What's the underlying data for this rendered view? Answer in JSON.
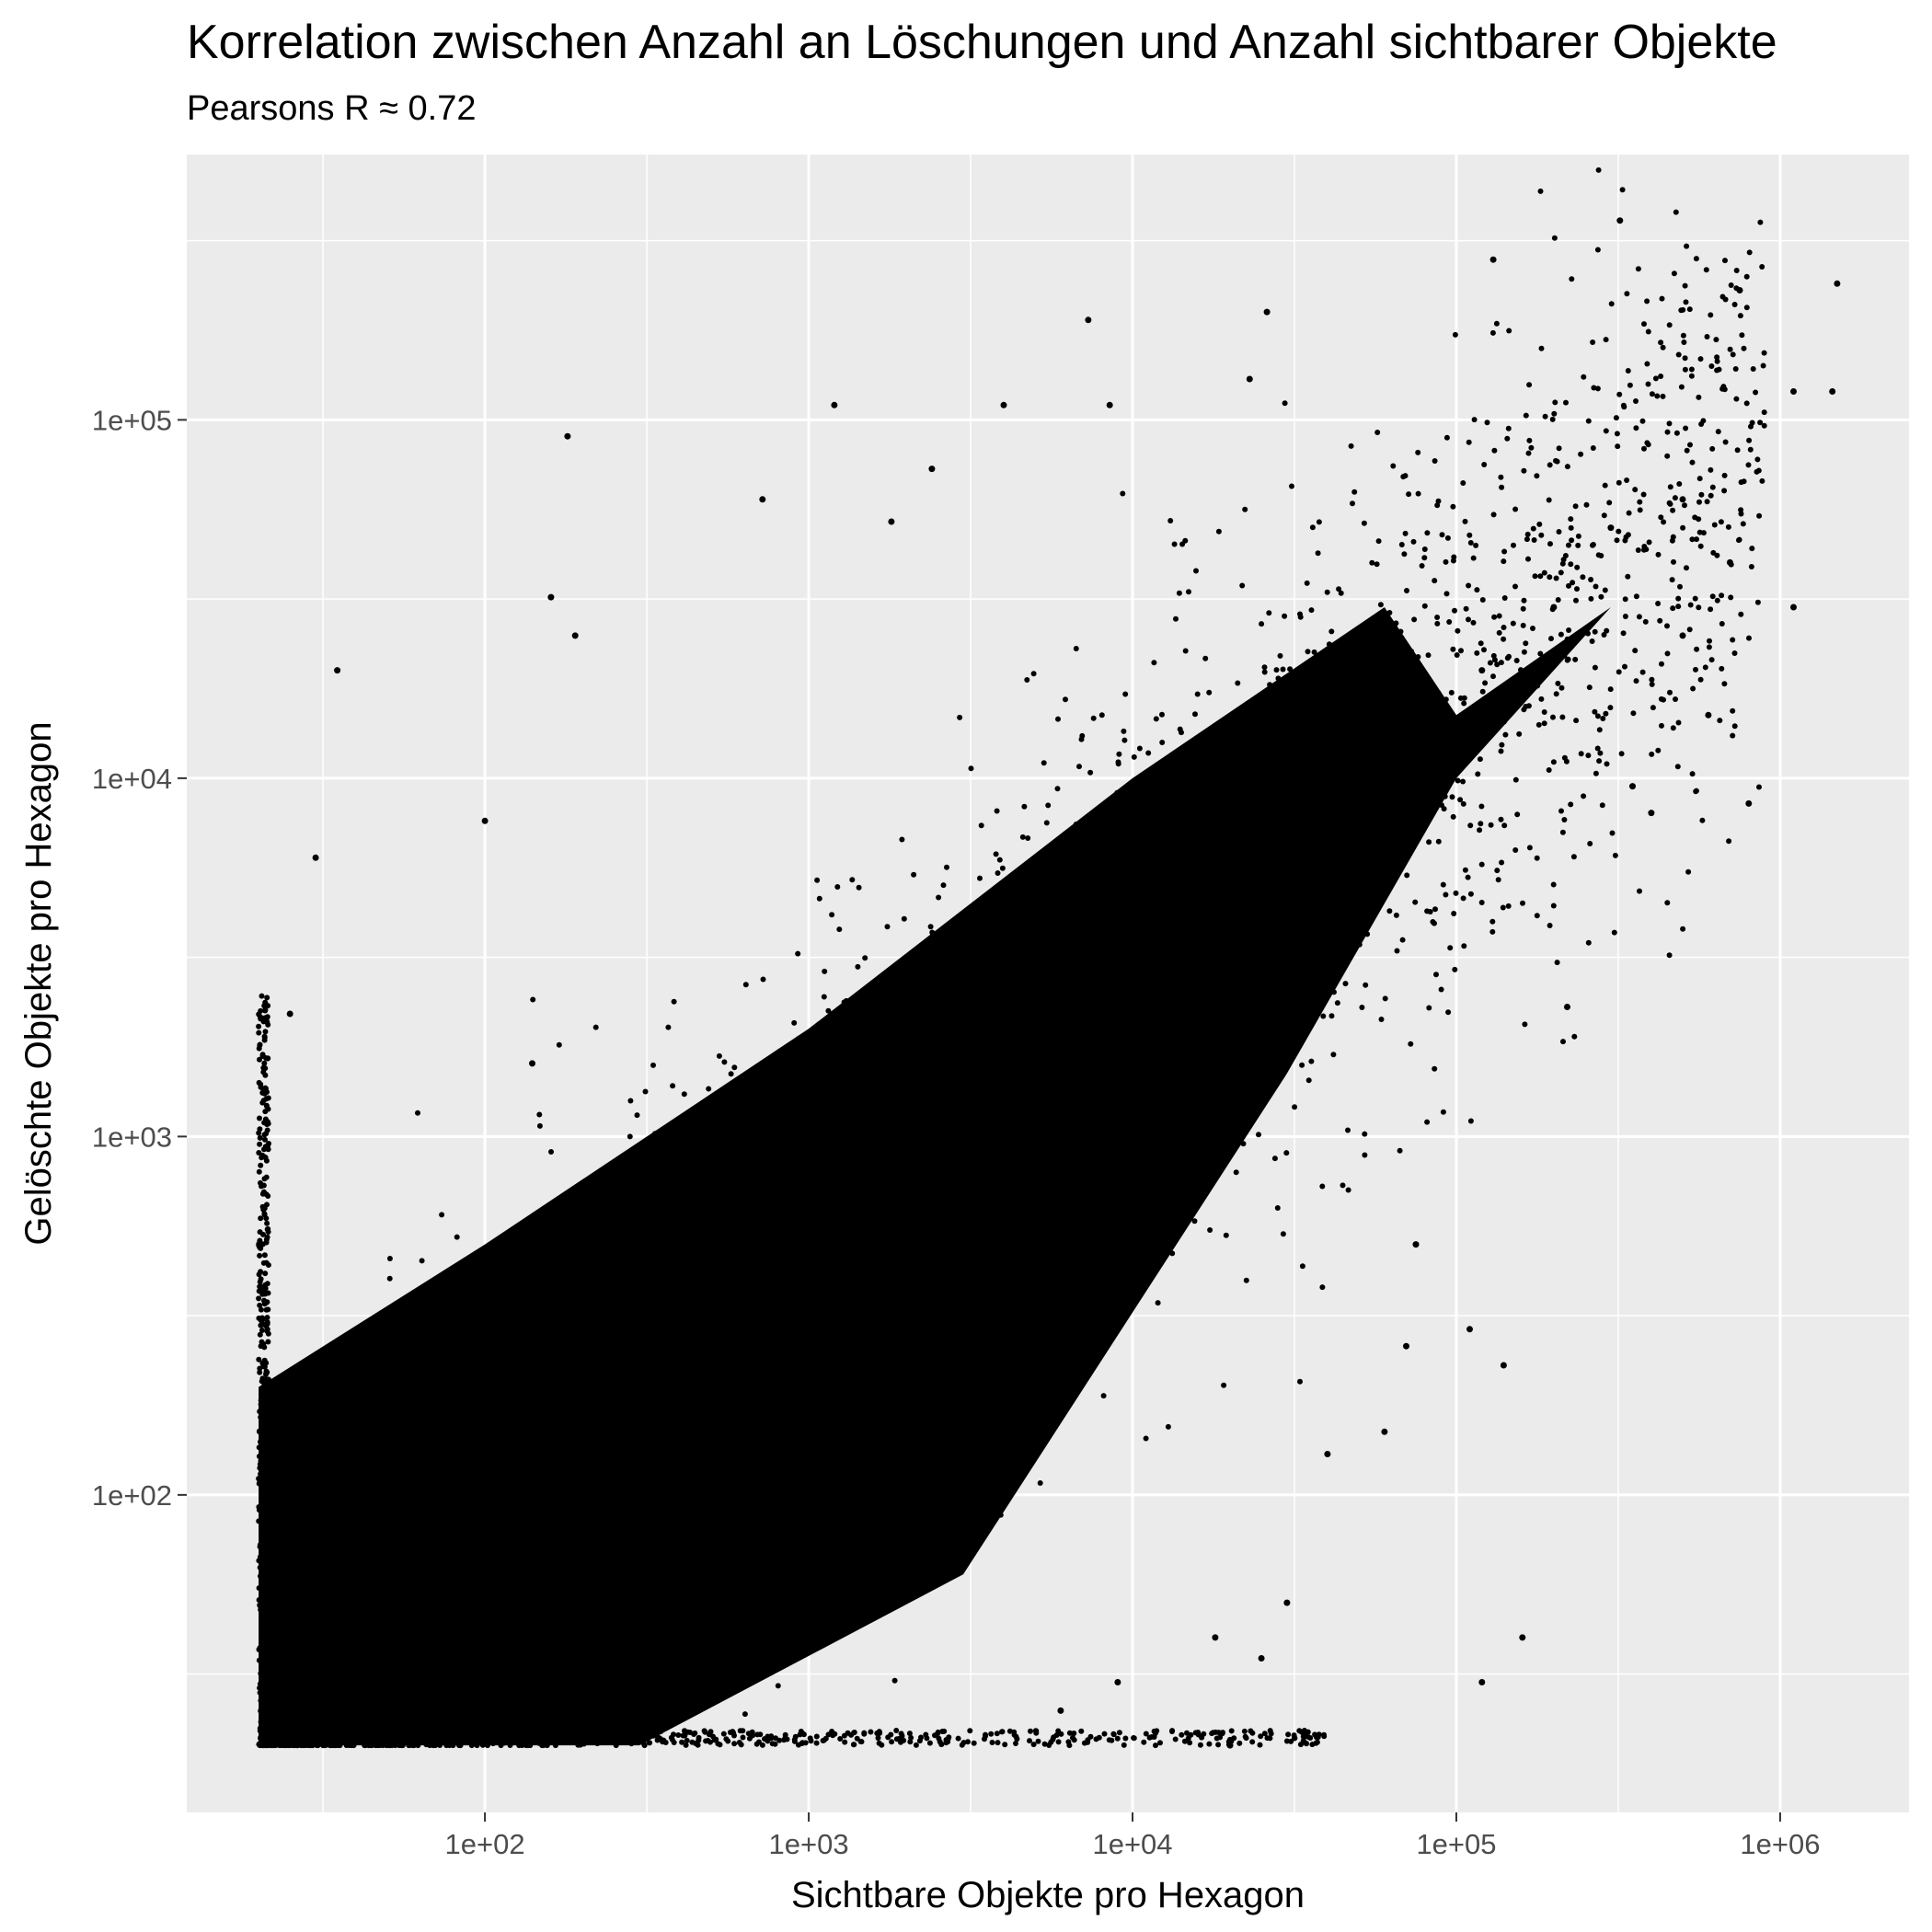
{
  "chart_data": {
    "type": "scatter",
    "title": "Korrelation zwischen Anzahl an Löschungen und Anzahl sichtbarer Objekte",
    "subtitle": "Pearsons R ≈ 0.72",
    "xlabel": "Sichtbare Objekte pro Hexagon",
    "ylabel": "Gelöschte Objekte pro Hexagon",
    "x_scale": "log10",
    "y_scale": "log10",
    "xlim": [
      12,
      2500000
    ],
    "ylim": [
      13,
      550000
    ],
    "x_ticks": [
      {
        "value": 100,
        "label": "1e+02"
      },
      {
        "value": 1000,
        "label": "1e+03"
      },
      {
        "value": 10000,
        "label": "1e+04"
      },
      {
        "value": 100000,
        "label": "1e+05"
      },
      {
        "value": 1000000,
        "label": "1e+06"
      }
    ],
    "y_ticks": [
      {
        "value": 100,
        "label": "1e+02"
      },
      {
        "value": 1000,
        "label": "1e+03"
      },
      {
        "value": 10000,
        "label": "1e+04"
      },
      {
        "value": 100000,
        "label": "1e+05"
      }
    ],
    "grid": true,
    "legend": "none",
    "panel_color": "#ebebeb",
    "point_color": "#000000",
    "trend": {
      "x_min": 20,
      "y_min": 20,
      "dense_core": [
        [
          20,
          20
        ],
        [
          300,
          20
        ],
        [
          3000,
          60
        ],
        [
          30000,
          1500
        ],
        [
          100000,
          10000
        ],
        [
          300000,
          30000
        ]
      ]
    },
    "points": [
      [
        1800,
        300
      ],
      [
        2500,
        400
      ],
      [
        3500,
        800
      ],
      [
        5000,
        900
      ],
      [
        7000,
        1500
      ],
      [
        10000,
        2500
      ],
      [
        15000,
        3000
      ],
      [
        20000,
        5000
      ],
      [
        30000,
        7000
      ],
      [
        50000,
        10000
      ],
      [
        80000,
        15000
      ],
      [
        120000,
        20000
      ],
      [
        200000,
        30000
      ],
      [
        300000,
        50000
      ],
      [
        500000,
        60000
      ],
      [
        320000,
        360000
      ],
      [
        130000,
        280000
      ],
      [
        1500000,
        240000
      ],
      [
        750000,
        230000
      ],
      [
        1100000,
        120000
      ],
      [
        1450000,
        120000
      ],
      [
        1100000,
        30000
      ],
      [
        800000,
        8500
      ],
      [
        26000,
        200000
      ],
      [
        7300,
        190000
      ],
      [
        23000,
        130000
      ],
      [
        8500,
        110000
      ],
      [
        4000,
        110000
      ],
      [
        1200,
        110000
      ],
      [
        180,
        90000
      ],
      [
        2400,
        73000
      ],
      [
        720,
        60000
      ],
      [
        1800,
        52000
      ],
      [
        160,
        32000
      ],
      [
        190,
        25000
      ],
      [
        35,
        20000
      ],
      [
        30,
        6000
      ],
      [
        25,
        2200
      ],
      [
        1100,
        1400
      ],
      [
        100,
        7600
      ],
      [
        140,
        1600
      ],
      [
        650,
        520
      ],
      [
        2800,
        3300
      ],
      [
        6000,
        4200
      ],
      [
        12000,
        5200
      ],
      [
        160000,
        40
      ],
      [
        120000,
        30
      ],
      [
        75000,
        500
      ],
      [
        60000,
        150
      ],
      [
        40000,
        130
      ],
      [
        140000,
        230
      ],
      [
        110000,
        290
      ],
      [
        220000,
        2300
      ],
      [
        70000,
        260
      ],
      [
        25000,
        35
      ],
      [
        20000,
        20
      ],
      [
        30000,
        50
      ],
      [
        6000,
        25
      ],
      [
        9000,
        30
      ],
      [
        18000,
        40
      ],
      [
        400000,
        8000
      ],
      [
        350000,
        9500
      ],
      [
        600000,
        15000
      ],
      [
        500000,
        25000
      ],
      [
        700000,
        40000
      ]
    ]
  }
}
